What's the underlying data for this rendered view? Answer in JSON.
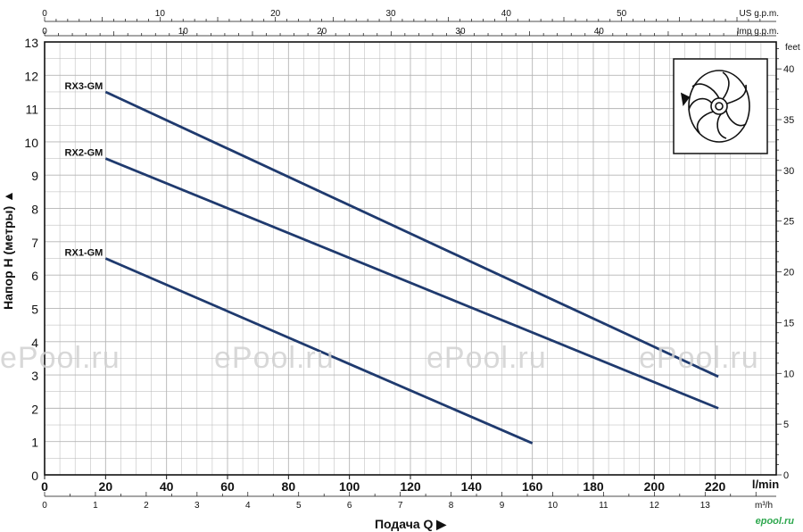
{
  "chart_data": {
    "type": "line",
    "ylabel": "Напор H (метры)",
    "xlabel": "Подача Q",
    "x_unit": "l/min",
    "x_range": [
      0,
      220
    ],
    "y_range": [
      0,
      13
    ],
    "x_ticks": [
      0,
      20,
      40,
      60,
      80,
      100,
      120,
      140,
      160,
      180,
      200,
      220
    ],
    "y_ticks": [
      0,
      1,
      2,
      3,
      4,
      5,
      6,
      7,
      8,
      9,
      10,
      11,
      12,
      13
    ],
    "grid": true,
    "series": [
      {
        "name": "RX3-GM",
        "x": [
          20,
          221
        ],
        "y": [
          11.5,
          2.95
        ]
      },
      {
        "name": "RX2-GM",
        "x": [
          20,
          221
        ],
        "y": [
          9.5,
          2.0
        ]
      },
      {
        "name": "RX1-GM",
        "x": [
          20,
          160
        ],
        "y": [
          6.5,
          0.95
        ]
      }
    ],
    "secondary_axes": {
      "us_gpm": {
        "label": "US g.p.m.",
        "ticks": [
          0,
          10,
          20,
          30,
          40,
          50
        ]
      },
      "imp_gpm": {
        "label": "Imp g.p.m.",
        "ticks": [
          0,
          10,
          20,
          30,
          40
        ]
      },
      "m3h": {
        "label": "m³/h",
        "ticks": [
          0,
          1,
          2,
          3,
          4,
          5,
          6,
          7,
          8,
          9,
          10,
          11,
          12,
          13
        ]
      },
      "feet": {
        "label": "feet",
        "ticks": [
          0,
          5,
          10,
          15,
          20,
          25,
          30,
          35,
          40
        ]
      }
    },
    "line_color": "#1f3a6e"
  },
  "watermark": "ePool.ru",
  "brand": "epool.ru"
}
